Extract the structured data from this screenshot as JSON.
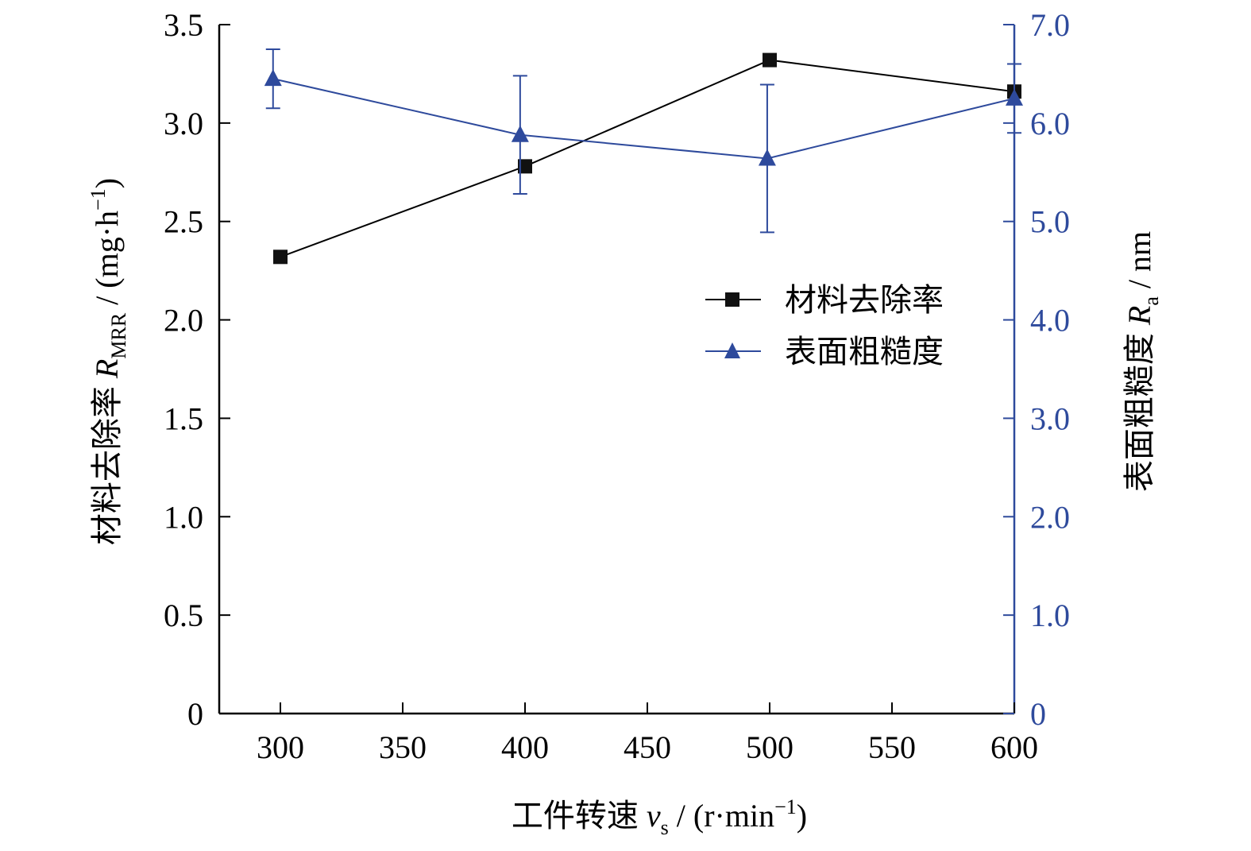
{
  "chart_data": {
    "type": "line",
    "title": "",
    "x": [
      300,
      400,
      500,
      600
    ],
    "xlim": [
      275,
      600
    ],
    "xticks": [
      300,
      350,
      400,
      450,
      500,
      550,
      600
    ],
    "x_tick_labels": [
      "300",
      "350",
      "400",
      "450",
      "500",
      "550",
      "600"
    ],
    "xlabel": {
      "text": "工件转速 ",
      "symbol": "v",
      "symbol_sub": "s",
      "units": " / (r·min",
      "units_sup": "−1",
      "units_end": ")"
    },
    "y_left": {
      "lim": [
        0,
        3.5
      ],
      "ticks": [
        0,
        0.5,
        1.0,
        1.5,
        2.0,
        2.5,
        3.0,
        3.5
      ],
      "tick_labels": [
        "0",
        "0.5",
        "1.0",
        "1.5",
        "2.0",
        "2.5",
        "3.0",
        "3.5"
      ],
      "label": {
        "text": "材料去除率 ",
        "symbol": "R",
        "symbol_sub": "MRR",
        "units": " / (mg·h",
        "units_sup": "−1",
        "units_end": ")"
      },
      "color": "#000000"
    },
    "y_right": {
      "lim": [
        0,
        7.0
      ],
      "ticks": [
        0,
        1.0,
        2.0,
        3.0,
        4.0,
        5.0,
        6.0,
        7.0
      ],
      "tick_labels": [
        "0",
        "1.0",
        "2.0",
        "3.0",
        "4.0",
        "5.0",
        "6.0",
        "7.0"
      ],
      "label": {
        "text": "表面粗糙度 ",
        "symbol": "R",
        "symbol_sub": "a",
        "units": " / nm"
      },
      "color": "#2e4a9c"
    },
    "series": [
      {
        "name": "材料去除率",
        "axis": "left",
        "marker": "square",
        "color": "#000000",
        "x": [
          300,
          400,
          500,
          600
        ],
        "values": [
          2.32,
          2.78,
          3.32,
          3.16
        ]
      },
      {
        "name": "表面粗糙度",
        "axis": "right",
        "marker": "triangle",
        "color": "#2e4a9c",
        "x": [
          297,
          398,
          499,
          600
        ],
        "values": [
          6.45,
          5.88,
          5.64,
          6.25
        ],
        "error": [
          0.3,
          0.6,
          0.75,
          0.35
        ]
      }
    ],
    "legend": {
      "position": "center-right"
    }
  }
}
